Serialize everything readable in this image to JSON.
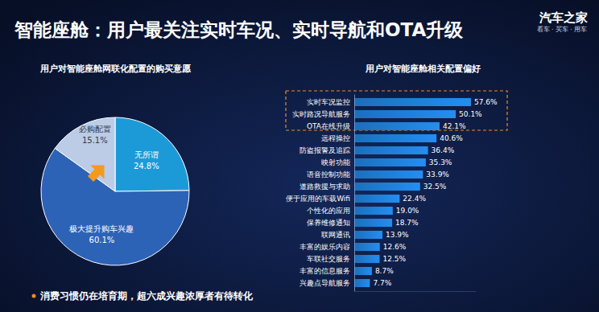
{
  "title": "智能座舱：用户最关注实时车况、实时导航和OTA升级",
  "logo": {
    "name": "汽车之家",
    "tagline": "看车 · 买车 · 用车"
  },
  "footer": "消费习惯仍在培育期，超六成兴趣浓厚者有待转化",
  "chart_data": [
    {
      "type": "pie",
      "title": "用户对智能座舱网联化配置的购买意愿",
      "categories": [
        "无所谓",
        "极大提升购车兴趣",
        "必购配置"
      ],
      "values": [
        24.8,
        60.1,
        15.1
      ],
      "value_labels": [
        "24.8%",
        "60.1%",
        "15.1%"
      ],
      "colors": [
        "#1c9ad8",
        "#2d63b6",
        "#bccbe6"
      ],
      "data_labels": true
    },
    {
      "type": "bar",
      "orientation": "horizontal",
      "title": "用户对智能座舱相关配置偏好",
      "categories": [
        "实时车况监控",
        "实时路况导航服务",
        "OTA在线升级",
        "远程操控",
        "防盗报警及追踪",
        "映射功能",
        "语音控制功能",
        "道路救援与求助",
        "便于应用的车载Wifi",
        "个性化的应用",
        "保养维修通知",
        "联网通讯",
        "丰富的娱乐内容",
        "车联社交服务",
        "丰富的信息服务",
        "兴趣点导航服务"
      ],
      "values": [
        57.6,
        50.1,
        42.1,
        40.6,
        36.4,
        35.3,
        33.9,
        32.5,
        22.4,
        19.0,
        18.7,
        13.9,
        12.6,
        12.5,
        8.7,
        7.7
      ],
      "value_labels": [
        "57.6%",
        "50.1%",
        "42.1%",
        "40.6%",
        "36.4%",
        "35.3%",
        "33.9%",
        "32.5%",
        "22.4%",
        "19.0%",
        "18.7%",
        "13.9%",
        "12.6%",
        "12.5%",
        "8.7%",
        "7.7%"
      ],
      "color": "#1f80d9",
      "xlim": [
        0,
        60
      ],
      "tick_labels": "y",
      "data_labels": true
    }
  ]
}
